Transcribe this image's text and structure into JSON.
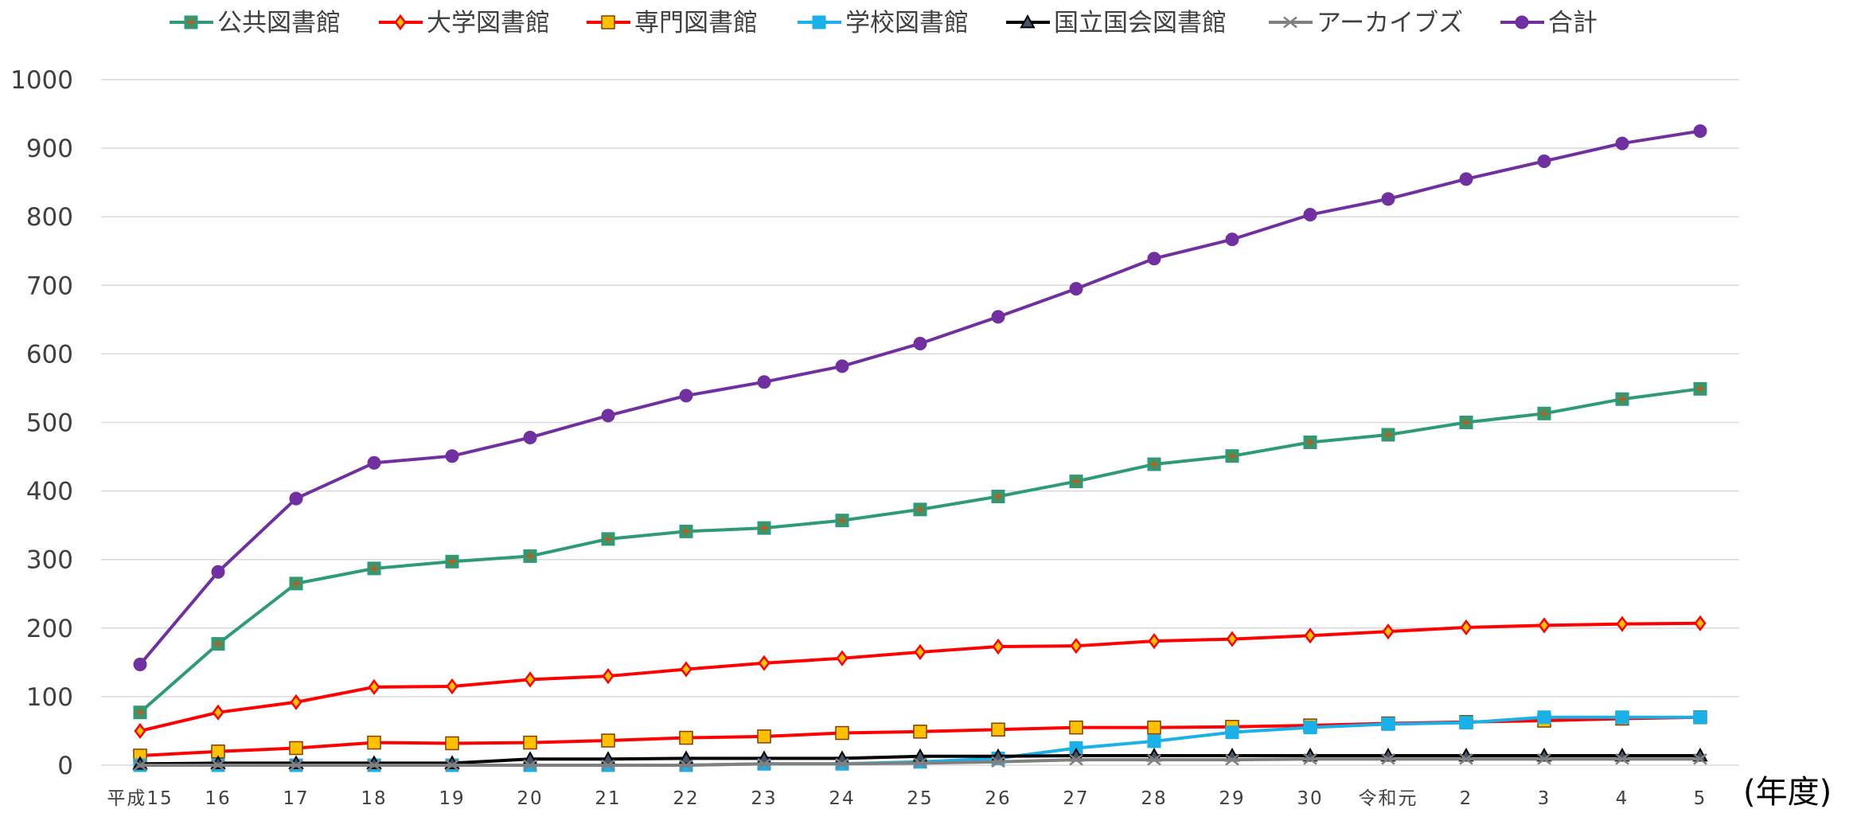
{
  "chart_data": {
    "type": "line",
    "x_unit_label": "(年度)",
    "categories": [
      "平成15",
      "16",
      "17",
      "18",
      "19",
      "20",
      "21",
      "22",
      "23",
      "24",
      "25",
      "26",
      "27",
      "28",
      "29",
      "30",
      "令和元",
      "2",
      "3",
      "4",
      "5"
    ],
    "ylim": [
      0,
      1000
    ],
    "yticks": [
      0,
      100,
      200,
      300,
      400,
      500,
      600,
      700,
      800,
      900,
      1000
    ],
    "grid": true,
    "legend_position": "top",
    "series": [
      {
        "name": "公共図書館",
        "color": "#2e9a76",
        "marker": "square-plus",
        "values": [
          77,
          177,
          265,
          287,
          297,
          305,
          330,
          341,
          346,
          357,
          373,
          392,
          414,
          439,
          451,
          471,
          482,
          500,
          513,
          534,
          549
        ]
      },
      {
        "name": "大学図書館",
        "color": "#ff0000",
        "marker": "diamond",
        "values": [
          50,
          77,
          92,
          114,
          115,
          125,
          130,
          140,
          149,
          156,
          165,
          173,
          174,
          181,
          184,
          189,
          195,
          201,
          204,
          206,
          207
        ]
      },
      {
        "name": "専門図書館",
        "color": "#ff0000",
        "marker": "square-orange",
        "values": [
          14,
          20,
          25,
          33,
          32,
          33,
          36,
          40,
          42,
          47,
          49,
          52,
          55,
          55,
          56,
          58,
          61,
          63,
          65,
          68,
          70
        ]
      },
      {
        "name": "学校図書館",
        "color": "#1ab0e8",
        "marker": "square",
        "values": [
          0,
          0,
          0,
          0,
          0,
          0,
          0,
          0,
          2,
          2,
          5,
          10,
          25,
          35,
          48,
          55,
          60,
          62,
          70,
          70,
          70
        ]
      },
      {
        "name": "国立国会図書館",
        "color": "#000000",
        "marker": "triangle",
        "values": [
          2,
          3,
          3,
          3,
          3,
          9,
          9,
          10,
          10,
          10,
          13,
          13,
          14,
          14,
          14,
          14,
          14,
          14,
          14,
          14,
          14
        ]
      },
      {
        "name": "アーカイブズ",
        "color": "#808080",
        "marker": "x",
        "values": [
          0,
          0,
          0,
          0,
          0,
          0,
          0,
          0,
          2,
          2,
          3,
          5,
          8,
          8,
          8,
          9,
          9,
          9,
          9,
          9,
          9
        ]
      },
      {
        "name": "合計",
        "color": "#7030a0",
        "marker": "circle",
        "values": [
          147,
          282,
          389,
          441,
          451,
          478,
          510,
          539,
          559,
          582,
          615,
          654,
          695,
          739,
          767,
          803,
          826,
          855,
          881,
          907,
          925
        ]
      }
    ]
  }
}
